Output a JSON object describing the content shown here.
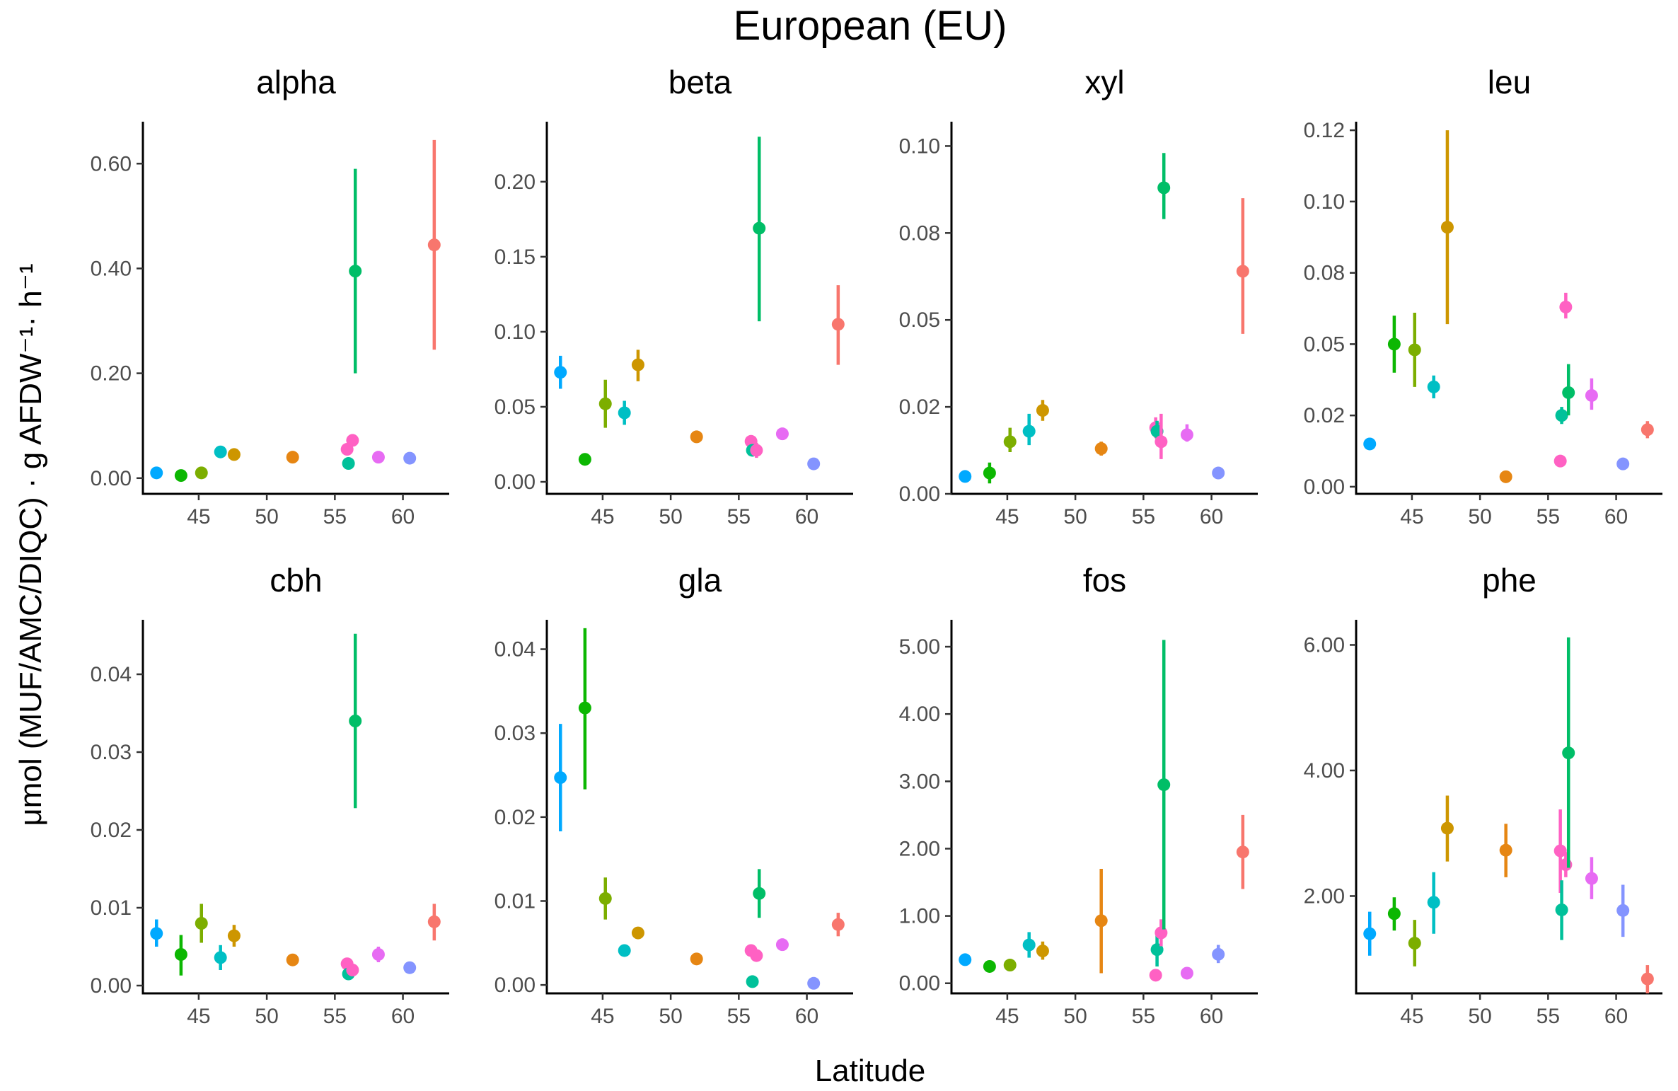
{
  "title": "European (EU)",
  "xlabel": "Latitude",
  "ylabel": "μmol (MUF/AMC/DIQC) · g AFDW⁻¹· h⁻¹",
  "chart_data": [
    {
      "type": "scatter",
      "panel": "alpha",
      "title": "alpha",
      "ylim": [
        -0.03,
        0.68
      ],
      "yticks": [
        0,
        0.2,
        0.4,
        0.6
      ],
      "ytick_labels": [
        "0.00",
        "0.20",
        "0.40",
        "0.60"
      ],
      "xlim": [
        40.9,
        63.4
      ],
      "xticks": [
        45,
        50,
        55,
        60
      ],
      "xtick_labels": [
        "45",
        "50",
        "55",
        "60"
      ],
      "points": [
        {
          "x": 41.9,
          "y": 0.01,
          "lo": 0.005,
          "hi": 0.015,
          "color": "#00A9FF"
        },
        {
          "x": 43.7,
          "y": 0.005,
          "lo": 0.002,
          "hi": 0.008,
          "color": "#0CB702"
        },
        {
          "x": 45.2,
          "y": 0.01,
          "lo": 0.005,
          "hi": 0.015,
          "color": "#7CAE00"
        },
        {
          "x": 46.6,
          "y": 0.05,
          "lo": 0.045,
          "hi": 0.055,
          "color": "#00BFC4"
        },
        {
          "x": 47.6,
          "y": 0.045,
          "lo": 0.04,
          "hi": 0.05,
          "color": "#CD9600"
        },
        {
          "x": 51.9,
          "y": 0.04,
          "lo": 0.035,
          "hi": 0.045,
          "color": "#E68613"
        },
        {
          "x": 55.9,
          "y": 0.055,
          "lo": 0.05,
          "hi": 0.06,
          "color": "#FF61C3"
        },
        {
          "x": 56.0,
          "y": 0.028,
          "lo": 0.023,
          "hi": 0.033,
          "color": "#00C19A"
        },
        {
          "x": 56.3,
          "y": 0.072,
          "lo": 0.065,
          "hi": 0.079,
          "color": "#FF61C3"
        },
        {
          "x": 56.5,
          "y": 0.395,
          "lo": 0.2,
          "hi": 0.59,
          "color": "#00BE67"
        },
        {
          "x": 58.2,
          "y": 0.04,
          "lo": 0.035,
          "hi": 0.045,
          "color": "#E76BF3"
        },
        {
          "x": 60.5,
          "y": 0.038,
          "lo": 0.033,
          "hi": 0.043,
          "color": "#8494FF"
        },
        {
          "x": 62.3,
          "y": 0.445,
          "lo": 0.245,
          "hi": 0.645,
          "color": "#F8766D"
        }
      ]
    },
    {
      "type": "scatter",
      "panel": "beta",
      "title": "beta",
      "ylim": [
        -0.008,
        0.24
      ],
      "yticks": [
        0,
        0.05,
        0.1,
        0.15,
        0.2
      ],
      "ytick_labels": [
        "0.00",
        "0.05",
        "0.10",
        "0.15",
        "0.20"
      ],
      "xlim": [
        40.9,
        63.4
      ],
      "xticks": [
        45,
        50,
        55,
        60
      ],
      "xtick_labels": [
        "45",
        "50",
        "55",
        "60"
      ],
      "points": [
        {
          "x": 41.9,
          "y": 0.073,
          "lo": 0.062,
          "hi": 0.084,
          "color": "#00A9FF"
        },
        {
          "x": 43.7,
          "y": 0.015,
          "lo": 0.013,
          "hi": 0.017,
          "color": "#0CB702"
        },
        {
          "x": 45.2,
          "y": 0.052,
          "lo": 0.036,
          "hi": 0.068,
          "color": "#7CAE00"
        },
        {
          "x": 46.6,
          "y": 0.046,
          "lo": 0.038,
          "hi": 0.054,
          "color": "#00BFC4"
        },
        {
          "x": 47.6,
          "y": 0.078,
          "lo": 0.067,
          "hi": 0.088,
          "color": "#CD9600"
        },
        {
          "x": 51.9,
          "y": 0.03,
          "lo": 0.028,
          "hi": 0.032,
          "color": "#E68613"
        },
        {
          "x": 55.9,
          "y": 0.027,
          "lo": 0.024,
          "hi": 0.03,
          "color": "#FF61C3"
        },
        {
          "x": 56.0,
          "y": 0.021,
          "lo": 0.017,
          "hi": 0.025,
          "color": "#00C19A"
        },
        {
          "x": 56.3,
          "y": 0.021,
          "lo": 0.016,
          "hi": 0.026,
          "color": "#FF61C3"
        },
        {
          "x": 56.5,
          "y": 0.169,
          "lo": 0.107,
          "hi": 0.23,
          "color": "#00BE67"
        },
        {
          "x": 58.2,
          "y": 0.032,
          "lo": 0.029,
          "hi": 0.035,
          "color": "#E76BF3"
        },
        {
          "x": 60.5,
          "y": 0.012,
          "lo": 0.009,
          "hi": 0.015,
          "color": "#8494FF"
        },
        {
          "x": 62.3,
          "y": 0.105,
          "lo": 0.078,
          "hi": 0.131,
          "color": "#F8766D"
        }
      ]
    },
    {
      "type": "scatter",
      "panel": "xyl",
      "title": "xyl",
      "ylim": [
        0,
        0.107
      ],
      "yticks": [
        0,
        0.025,
        0.05,
        0.075,
        0.1
      ],
      "ytick_labels": [
        "0.00",
        "0.02",
        "0.05",
        "0.08",
        "0.10"
      ],
      "xlim": [
        40.9,
        63.4
      ],
      "xticks": [
        45,
        50,
        55,
        60
      ],
      "xtick_labels": [
        "45",
        "50",
        "55",
        "60"
      ],
      "points": [
        {
          "x": 41.9,
          "y": 0.005,
          "lo": 0.004,
          "hi": 0.006,
          "color": "#00A9FF"
        },
        {
          "x": 43.7,
          "y": 0.006,
          "lo": 0.003,
          "hi": 0.009,
          "color": "#0CB702"
        },
        {
          "x": 45.2,
          "y": 0.015,
          "lo": 0.012,
          "hi": 0.019,
          "color": "#7CAE00"
        },
        {
          "x": 46.6,
          "y": 0.018,
          "lo": 0.014,
          "hi": 0.023,
          "color": "#00BFC4"
        },
        {
          "x": 47.6,
          "y": 0.024,
          "lo": 0.021,
          "hi": 0.027,
          "color": "#CD9600"
        },
        {
          "x": 51.9,
          "y": 0.013,
          "lo": 0.011,
          "hi": 0.015,
          "color": "#E68613"
        },
        {
          "x": 55.9,
          "y": 0.019,
          "lo": 0.016,
          "hi": 0.022,
          "color": "#FF61C3"
        },
        {
          "x": 56.0,
          "y": 0.018,
          "lo": 0.015,
          "hi": 0.021,
          "color": "#00C19A"
        },
        {
          "x": 56.3,
          "y": 0.015,
          "lo": 0.01,
          "hi": 0.023,
          "color": "#FF61C3"
        },
        {
          "x": 56.5,
          "y": 0.088,
          "lo": 0.079,
          "hi": 0.098,
          "color": "#00BE67"
        },
        {
          "x": 58.2,
          "y": 0.017,
          "lo": 0.015,
          "hi": 0.02,
          "color": "#E76BF3"
        },
        {
          "x": 60.5,
          "y": 0.006,
          "lo": 0.005,
          "hi": 0.007,
          "color": "#8494FF"
        },
        {
          "x": 62.3,
          "y": 0.064,
          "lo": 0.046,
          "hi": 0.085,
          "color": "#F8766D"
        }
      ]
    },
    {
      "type": "scatter",
      "panel": "leu",
      "title": "leu",
      "ylim": [
        -0.0025,
        0.128
      ],
      "yticks": [
        0,
        0.025,
        0.05,
        0.075,
        0.1,
        0.125
      ],
      "ytick_labels": [
        "0.00",
        "0.02",
        "0.05",
        "0.08",
        "0.10",
        "0.12"
      ],
      "xlim": [
        40.9,
        63.4
      ],
      "xticks": [
        45,
        50,
        55,
        60
      ],
      "xtick_labels": [
        "45",
        "50",
        "55",
        "60"
      ],
      "points": [
        {
          "x": 41.9,
          "y": 0.015,
          "lo": 0.014,
          "hi": 0.016,
          "color": "#00A9FF"
        },
        {
          "x": 43.7,
          "y": 0.05,
          "lo": 0.04,
          "hi": 0.06,
          "color": "#0CB702"
        },
        {
          "x": 45.2,
          "y": 0.048,
          "lo": 0.035,
          "hi": 0.061,
          "color": "#7CAE00"
        },
        {
          "x": 46.6,
          "y": 0.035,
          "lo": 0.031,
          "hi": 0.039,
          "color": "#00BFC4"
        },
        {
          "x": 47.6,
          "y": 0.091,
          "lo": 0.057,
          "hi": 0.125,
          "color": "#CD9600"
        },
        {
          "x": 51.9,
          "y": 0.0035,
          "lo": 0.003,
          "hi": 0.004,
          "color": "#E68613"
        },
        {
          "x": 55.9,
          "y": 0.009,
          "lo": 0.007,
          "hi": 0.011,
          "color": "#FF61C3"
        },
        {
          "x": 56.0,
          "y": 0.025,
          "lo": 0.022,
          "hi": 0.028,
          "color": "#00C19A"
        },
        {
          "x": 56.3,
          "y": 0.063,
          "lo": 0.059,
          "hi": 0.068,
          "color": "#FF61C3"
        },
        {
          "x": 56.5,
          "y": 0.033,
          "lo": 0.025,
          "hi": 0.043,
          "color": "#00BE67"
        },
        {
          "x": 58.2,
          "y": 0.032,
          "lo": 0.027,
          "hi": 0.038,
          "color": "#E76BF3"
        },
        {
          "x": 60.5,
          "y": 0.008,
          "lo": 0.007,
          "hi": 0.009,
          "color": "#8494FF"
        },
        {
          "x": 62.3,
          "y": 0.02,
          "lo": 0.017,
          "hi": 0.023,
          "color": "#F8766D"
        }
      ]
    },
    {
      "type": "scatter",
      "panel": "cbh",
      "title": "cbh",
      "ylim": [
        -0.001,
        0.047
      ],
      "yticks": [
        0,
        0.01,
        0.02,
        0.03,
        0.04
      ],
      "ytick_labels": [
        "0.00",
        "0.01",
        "0.02",
        "0.03",
        "0.04"
      ],
      "xlim": [
        40.9,
        63.4
      ],
      "xticks": [
        45,
        50,
        55,
        60
      ],
      "xtick_labels": [
        "45",
        "50",
        "55",
        "60"
      ],
      "points": [
        {
          "x": 41.9,
          "y": 0.0067,
          "lo": 0.005,
          "hi": 0.0085,
          "color": "#00A9FF"
        },
        {
          "x": 43.7,
          "y": 0.004,
          "lo": 0.0013,
          "hi": 0.0065,
          "color": "#0CB702"
        },
        {
          "x": 45.2,
          "y": 0.008,
          "lo": 0.0055,
          "hi": 0.0105,
          "color": "#7CAE00"
        },
        {
          "x": 46.6,
          "y": 0.0036,
          "lo": 0.002,
          "hi": 0.0052,
          "color": "#00BFC4"
        },
        {
          "x": 47.6,
          "y": 0.0064,
          "lo": 0.005,
          "hi": 0.0078,
          "color": "#CD9600"
        },
        {
          "x": 51.9,
          "y": 0.0033,
          "lo": 0.003,
          "hi": 0.0036,
          "color": "#E68613"
        },
        {
          "x": 55.9,
          "y": 0.0028,
          "lo": 0.0024,
          "hi": 0.0032,
          "color": "#FF61C3"
        },
        {
          "x": 56.0,
          "y": 0.0015,
          "lo": 0.0012,
          "hi": 0.0018,
          "color": "#00C19A"
        },
        {
          "x": 56.3,
          "y": 0.002,
          "lo": 0.0016,
          "hi": 0.0024,
          "color": "#FF61C3"
        },
        {
          "x": 56.5,
          "y": 0.034,
          "lo": 0.0228,
          "hi": 0.0452,
          "color": "#00BE67"
        },
        {
          "x": 58.2,
          "y": 0.004,
          "lo": 0.003,
          "hi": 0.005,
          "color": "#E76BF3"
        },
        {
          "x": 60.5,
          "y": 0.0023,
          "lo": 0.0016,
          "hi": 0.003,
          "color": "#8494FF"
        },
        {
          "x": 62.3,
          "y": 0.0082,
          "lo": 0.0058,
          "hi": 0.0105,
          "color": "#F8766D"
        }
      ]
    },
    {
      "type": "scatter",
      "panel": "gla",
      "title": "gla",
      "ylim": [
        -0.001,
        0.0435
      ],
      "yticks": [
        0,
        0.01,
        0.02,
        0.03,
        0.04
      ],
      "ytick_labels": [
        "0.00",
        "0.01",
        "0.02",
        "0.03",
        "0.04"
      ],
      "xlim": [
        40.9,
        63.4
      ],
      "xticks": [
        45,
        50,
        55,
        60
      ],
      "xtick_labels": [
        "45",
        "50",
        "55",
        "60"
      ],
      "points": [
        {
          "x": 41.9,
          "y": 0.0247,
          "lo": 0.0183,
          "hi": 0.0311,
          "color": "#00A9FF"
        },
        {
          "x": 43.7,
          "y": 0.033,
          "lo": 0.0233,
          "hi": 0.0425,
          "color": "#0CB702"
        },
        {
          "x": 45.2,
          "y": 0.0103,
          "lo": 0.0078,
          "hi": 0.0128,
          "color": "#7CAE00"
        },
        {
          "x": 46.6,
          "y": 0.0041,
          "lo": 0.0034,
          "hi": 0.0048,
          "color": "#00BFC4"
        },
        {
          "x": 47.6,
          "y": 0.0062,
          "lo": 0.0058,
          "hi": 0.0066,
          "color": "#CD9600"
        },
        {
          "x": 51.9,
          "y": 0.0031,
          "lo": 0.0029,
          "hi": 0.0033,
          "color": "#E68613"
        },
        {
          "x": 55.9,
          "y": 0.0041,
          "lo": 0.0036,
          "hi": 0.0046,
          "color": "#FF61C3"
        },
        {
          "x": 56.0,
          "y": 0.0004,
          "lo": 0.0002,
          "hi": 0.0006,
          "color": "#00C19A"
        },
        {
          "x": 56.3,
          "y": 0.0035,
          "lo": 0.003,
          "hi": 0.004,
          "color": "#FF61C3"
        },
        {
          "x": 56.5,
          "y": 0.0109,
          "lo": 0.008,
          "hi": 0.0138,
          "color": "#00BE67"
        },
        {
          "x": 58.2,
          "y": 0.0048,
          "lo": 0.0044,
          "hi": 0.0052,
          "color": "#E76BF3"
        },
        {
          "x": 60.5,
          "y": 0.0002,
          "lo": 0.0001,
          "hi": 0.0003,
          "color": "#8494FF"
        },
        {
          "x": 62.3,
          "y": 0.0072,
          "lo": 0.0058,
          "hi": 0.0086,
          "color": "#F8766D"
        }
      ]
    },
    {
      "type": "scatter",
      "panel": "fos",
      "title": "fos",
      "ylim": [
        -0.15,
        5.4
      ],
      "yticks": [
        0,
        1,
        2,
        3,
        4,
        5
      ],
      "ytick_labels": [
        "0.00",
        "1.00",
        "2.00",
        "3.00",
        "4.00",
        "5.00"
      ],
      "xlim": [
        40.9,
        63.4
      ],
      "xticks": [
        45,
        50,
        55,
        60
      ],
      "xtick_labels": [
        "45",
        "50",
        "55",
        "60"
      ],
      "points": [
        {
          "x": 41.9,
          "y": 0.35,
          "lo": 0.3,
          "hi": 0.4,
          "color": "#00A9FF"
        },
        {
          "x": 43.7,
          "y": 0.25,
          "lo": 0.2,
          "hi": 0.3,
          "color": "#0CB702"
        },
        {
          "x": 45.2,
          "y": 0.27,
          "lo": 0.2,
          "hi": 0.34,
          "color": "#7CAE00"
        },
        {
          "x": 46.6,
          "y": 0.57,
          "lo": 0.38,
          "hi": 0.76,
          "color": "#00BFC4"
        },
        {
          "x": 47.6,
          "y": 0.48,
          "lo": 0.35,
          "hi": 0.62,
          "color": "#CD9600"
        },
        {
          "x": 51.9,
          "y": 0.93,
          "lo": 0.15,
          "hi": 1.7,
          "color": "#E68613"
        },
        {
          "x": 55.9,
          "y": 0.12,
          "lo": 0.09,
          "hi": 0.15,
          "color": "#FF61C3"
        },
        {
          "x": 56.0,
          "y": 0.5,
          "lo": 0.25,
          "hi": 0.76,
          "color": "#00C19A"
        },
        {
          "x": 56.3,
          "y": 0.75,
          "lo": 0.55,
          "hi": 0.95,
          "color": "#FF61C3"
        },
        {
          "x": 56.5,
          "y": 2.95,
          "lo": 0.8,
          "hi": 5.1,
          "color": "#00BE67"
        },
        {
          "x": 58.2,
          "y": 0.15,
          "lo": 0.12,
          "hi": 0.18,
          "color": "#E76BF3"
        },
        {
          "x": 60.5,
          "y": 0.43,
          "lo": 0.3,
          "hi": 0.57,
          "color": "#8494FF"
        },
        {
          "x": 62.3,
          "y": 1.95,
          "lo": 1.4,
          "hi": 2.5,
          "color": "#F8766D"
        }
      ]
    },
    {
      "type": "scatter",
      "panel": "phe",
      "title": "phe",
      "ylim": [
        0.45,
        6.4
      ],
      "yticks": [
        2,
        4,
        6
      ],
      "ytick_labels": [
        "2.00",
        "4.00",
        "6.00"
      ],
      "xlim": [
        40.9,
        63.4
      ],
      "xticks": [
        45,
        50,
        55,
        60
      ],
      "xtick_labels": [
        "45",
        "50",
        "55",
        "60"
      ],
      "points": [
        {
          "x": 41.9,
          "y": 1.4,
          "lo": 1.05,
          "hi": 1.75,
          "color": "#00A9FF"
        },
        {
          "x": 43.7,
          "y": 1.72,
          "lo": 1.45,
          "hi": 1.98,
          "color": "#0CB702"
        },
        {
          "x": 45.2,
          "y": 1.25,
          "lo": 0.88,
          "hi": 1.62,
          "color": "#7CAE00"
        },
        {
          "x": 46.6,
          "y": 1.9,
          "lo": 1.4,
          "hi": 2.38,
          "color": "#00BFC4"
        },
        {
          "x": 47.6,
          "y": 3.08,
          "lo": 2.55,
          "hi": 3.6,
          "color": "#CD9600"
        },
        {
          "x": 51.9,
          "y": 2.73,
          "lo": 2.3,
          "hi": 3.15,
          "color": "#E68613"
        },
        {
          "x": 55.9,
          "y": 2.72,
          "lo": 2.05,
          "hi": 3.38,
          "color": "#FF61C3"
        },
        {
          "x": 56.0,
          "y": 1.78,
          "lo": 1.3,
          "hi": 2.25,
          "color": "#00C19A"
        },
        {
          "x": 56.3,
          "y": 2.5,
          "lo": 2.3,
          "hi": 2.7,
          "color": "#FF61C3"
        },
        {
          "x": 56.5,
          "y": 4.28,
          "lo": 2.45,
          "hi": 6.12,
          "color": "#00BE67"
        },
        {
          "x": 58.2,
          "y": 2.28,
          "lo": 1.95,
          "hi": 2.62,
          "color": "#E76BF3"
        },
        {
          "x": 60.5,
          "y": 1.77,
          "lo": 1.35,
          "hi": 2.18,
          "color": "#8494FF"
        },
        {
          "x": 62.3,
          "y": 0.68,
          "lo": 0.45,
          "hi": 0.9,
          "color": "#F8766D"
        }
      ]
    }
  ]
}
